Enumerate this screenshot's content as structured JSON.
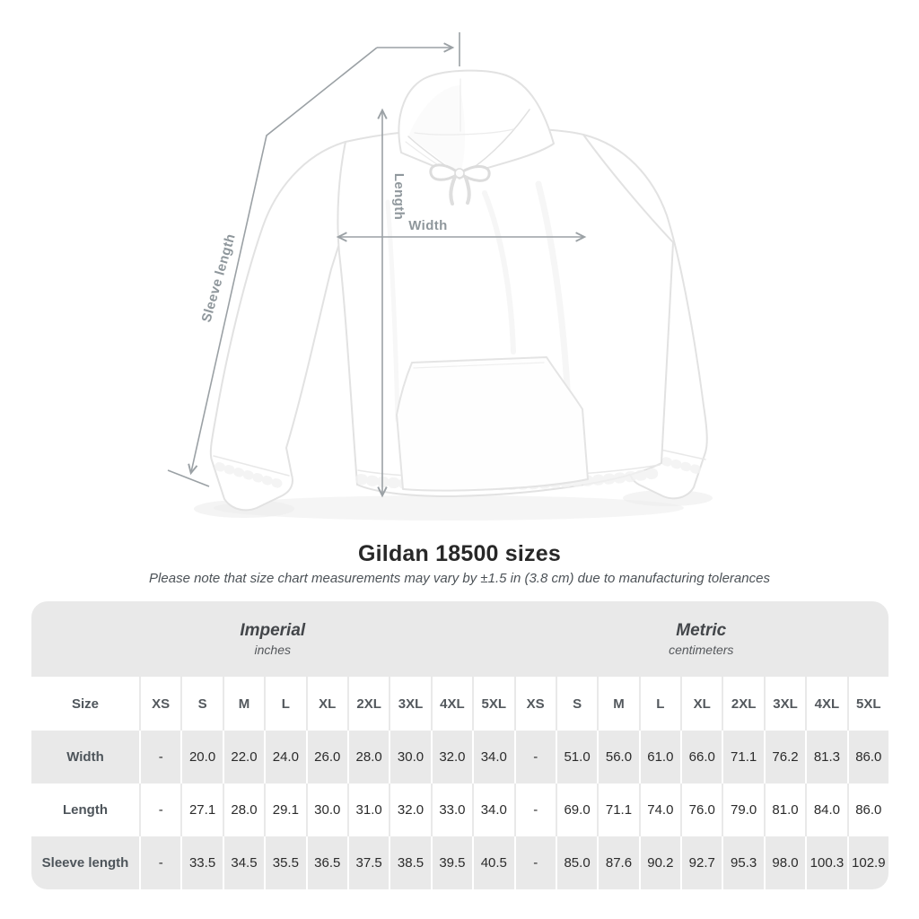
{
  "title": "Gildan 18500 sizes",
  "subtitle": "Please note that size chart measurements may vary by ±1.5 in (3.8 cm) due to manufacturing tolerances",
  "diagram": {
    "labels": {
      "sleeve_length": "Sleeve length",
      "length": "Length",
      "width": "Width"
    }
  },
  "colors": {
    "table_band": "#e9e9e9",
    "measure_line": "#9ba1a5",
    "measure_label": "#8f979c",
    "garment_outline": "#e2e2e2"
  },
  "chart_data": {
    "type": "table",
    "title": "Gildan 18500 sizes",
    "note": "Please note that size chart measurements may vary by ±1.5 in (3.8 cm) due to manufacturing tolerances",
    "size_header": "Size",
    "groups": [
      {
        "label": "Imperial",
        "sublabel": "inches"
      },
      {
        "label": "Metric",
        "sublabel": "centimeters"
      }
    ],
    "sizes": [
      "XS",
      "S",
      "M",
      "L",
      "XL",
      "2XL",
      "3XL",
      "4XL",
      "5XL"
    ],
    "rows": [
      {
        "label": "Width",
        "imperial": [
          "-",
          "20.0",
          "22.0",
          "24.0",
          "26.0",
          "28.0",
          "30.0",
          "32.0",
          "34.0"
        ],
        "metric": [
          "-",
          "51.0",
          "56.0",
          "61.0",
          "66.0",
          "71.1",
          "76.2",
          "81.3",
          "86.0"
        ]
      },
      {
        "label": "Length",
        "imperial": [
          "-",
          "27.1",
          "28.0",
          "29.1",
          "30.0",
          "31.0",
          "32.0",
          "33.0",
          "34.0"
        ],
        "metric": [
          "-",
          "69.0",
          "71.1",
          "74.0",
          "76.0",
          "79.0",
          "81.0",
          "84.0",
          "86.0"
        ]
      },
      {
        "label": "Sleeve length",
        "imperial": [
          "-",
          "33.5",
          "34.5",
          "35.5",
          "36.5",
          "37.5",
          "38.5",
          "39.5",
          "40.5"
        ],
        "metric": [
          "-",
          "85.0",
          "87.6",
          "90.2",
          "92.7",
          "95.3",
          "98.0",
          "100.3",
          "102.9"
        ]
      }
    ]
  }
}
